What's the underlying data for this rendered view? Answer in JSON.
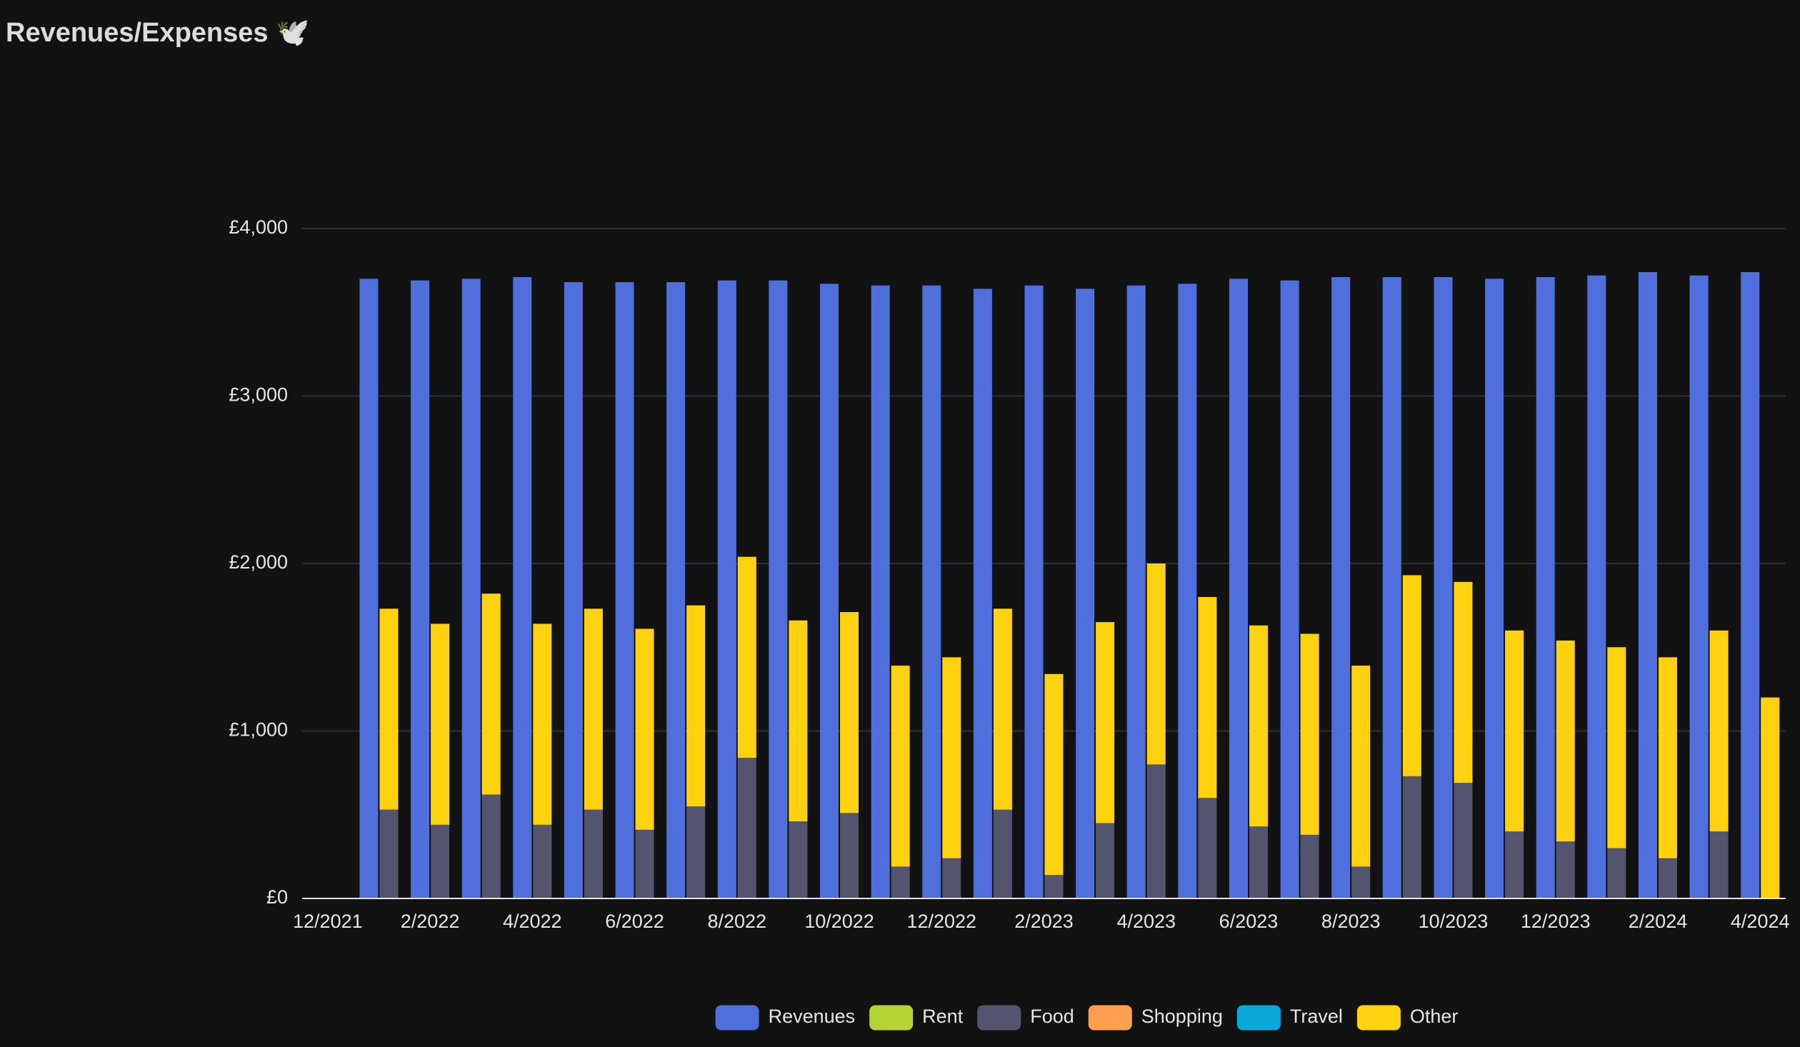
{
  "chart_data": {
    "type": "bar",
    "title": "Revenues/Expenses 🕊️",
    "categories": [
      "12/2021",
      null,
      "2/2022",
      null,
      "4/2022",
      null,
      "6/2022",
      null,
      "8/2022",
      null,
      "10/2022",
      null,
      "12/2022",
      null,
      "2/2023",
      null,
      "4/2023",
      null,
      "6/2023",
      null,
      "8/2023",
      null,
      "10/2023",
      null,
      "12/2023",
      null,
      "2/2024",
      null,
      "4/2024"
    ],
    "series": [
      {
        "name": "Revenues",
        "color": "#4f6fdd",
        "stack": "revenues",
        "values": [
          null,
          3700,
          3690,
          3700,
          3710,
          3680,
          3680,
          3680,
          3690,
          3690,
          3670,
          3660,
          3660,
          3640,
          3660,
          3640,
          3660,
          3670,
          3700,
          3690,
          3710,
          3710,
          3710,
          3700,
          3710,
          3720,
          3740,
          3720,
          3740
        ]
      },
      {
        "name": "Rent",
        "color": "#b5d335",
        "stack": "expenses",
        "values": [
          null,
          0,
          0,
          0,
          0,
          0,
          0,
          0,
          0,
          0,
          0,
          0,
          0,
          0,
          0,
          0,
          0,
          0,
          0,
          0,
          0,
          0,
          0,
          0,
          0,
          0,
          0,
          0,
          0
        ]
      },
      {
        "name": "Food",
        "color": "#54546f",
        "stack": "expenses",
        "values": [
          null,
          530,
          440,
          620,
          440,
          530,
          410,
          550,
          840,
          460,
          510,
          190,
          240,
          530,
          140,
          450,
          800,
          600,
          430,
          380,
          190,
          730,
          690,
          400,
          340,
          300,
          240,
          400,
          0
        ]
      },
      {
        "name": "Shopping",
        "color": "#ff9f4f",
        "stack": "expenses",
        "values": [
          null,
          0,
          0,
          0,
          0,
          0,
          0,
          0,
          0,
          0,
          0,
          0,
          0,
          0,
          0,
          0,
          0,
          0,
          0,
          0,
          0,
          0,
          0,
          0,
          0,
          0,
          0,
          0,
          0
        ]
      },
      {
        "name": "Travel",
        "color": "#0aa8d8",
        "stack": "expenses",
        "values": [
          null,
          0,
          0,
          0,
          0,
          0,
          0,
          0,
          0,
          0,
          0,
          0,
          0,
          0,
          0,
          0,
          0,
          0,
          0,
          0,
          0,
          0,
          0,
          0,
          0,
          0,
          0,
          0,
          0
        ]
      },
      {
        "name": "Other",
        "color": "#ffd20f",
        "stack": "expenses",
        "values": [
          null,
          1200,
          1200,
          1200,
          1200,
          1200,
          1200,
          1200,
          1200,
          1200,
          1200,
          1200,
          1200,
          1200,
          1200,
          1200,
          1200,
          1200,
          1200,
          1200,
          1200,
          1200,
          1200,
          1200,
          1200,
          1200,
          1200,
          1200,
          1200
        ]
      }
    ],
    "ylim": [
      0,
      4000
    ],
    "yticks": [
      {
        "value": 0,
        "label": "£0"
      },
      {
        "value": 1000,
        "label": "£1,000"
      },
      {
        "value": 2000,
        "label": "£2,000"
      },
      {
        "value": 3000,
        "label": "£3,000"
      },
      {
        "value": 4000,
        "label": "£4,000"
      }
    ],
    "grid": true,
    "legend": "bottom"
  }
}
